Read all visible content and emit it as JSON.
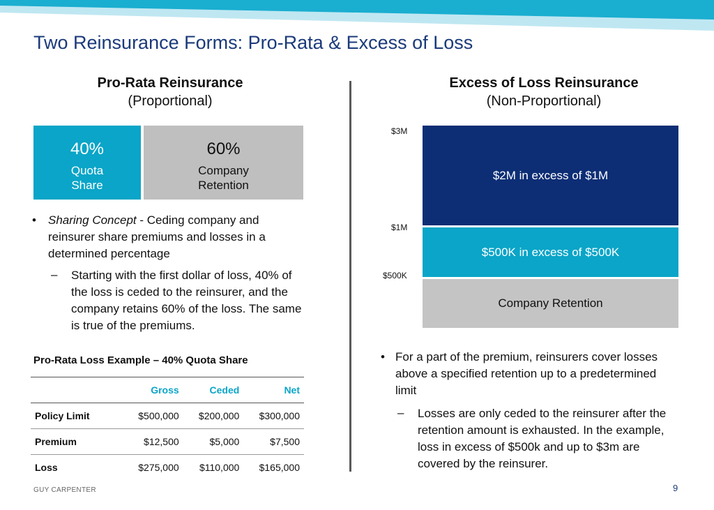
{
  "slide": {
    "title": "Two Reinsurance Forms: Pro-Rata & Excess of Loss",
    "footer_brand": "GUY CARPENTER",
    "page_number": "9"
  },
  "left": {
    "heading": "Pro-Rata Reinsurance",
    "subheading": "(Proportional)",
    "quota": {
      "pct": "40%",
      "label_line1": "Quota",
      "label_line2": "Share"
    },
    "retention": {
      "pct": "60%",
      "label_line1": "Company",
      "label_line2": "Retention"
    },
    "bullet_italic": "Sharing Concept",
    "bullet_rest": " - Ceding company and reinsurer share premiums and losses in a determined percentage",
    "sub_bullet": "Starting with the first dollar of loss, 40% of the loss is ceded to the reinsurer, and the company retains 60% of the loss. The same is true of the premiums.",
    "example_title": "Pro-Rata Loss Example – 40% Quota Share",
    "table": {
      "headers": [
        "",
        "Gross",
        "Ceded",
        "Net"
      ],
      "rows": [
        [
          "Policy Limit",
          "$500,000",
          "$200,000",
          "$300,000"
        ],
        [
          "Premium",
          "$12,500",
          "$5,000",
          "$7,500"
        ],
        [
          "Loss",
          "$275,000",
          "$110,000",
          "$165,000"
        ]
      ]
    }
  },
  "right": {
    "heading": "Excess of Loss Reinsurance",
    "subheading": "(Non-Proportional)",
    "axis": {
      "top": "$3M",
      "mid": "$1M",
      "low": "$500K"
    },
    "layers": {
      "top": "$2M in excess of $1M",
      "mid": "$500K in excess of $500K",
      "retention": "Company Retention"
    },
    "bullet": "For a part of the premium, reinsurers cover losses above a specified retention up to a predetermined limit",
    "sub_bullet": "Losses are only ceded to the reinsurer after the retention amount is exhausted. In the example, loss in excess of $500k and up to $3m are covered by the reinsurer."
  },
  "colors": {
    "title": "#1a3a7a",
    "accent_teal": "#0aa5c8",
    "navy": "#0d2e75",
    "gray": "#bfbfbf"
  }
}
